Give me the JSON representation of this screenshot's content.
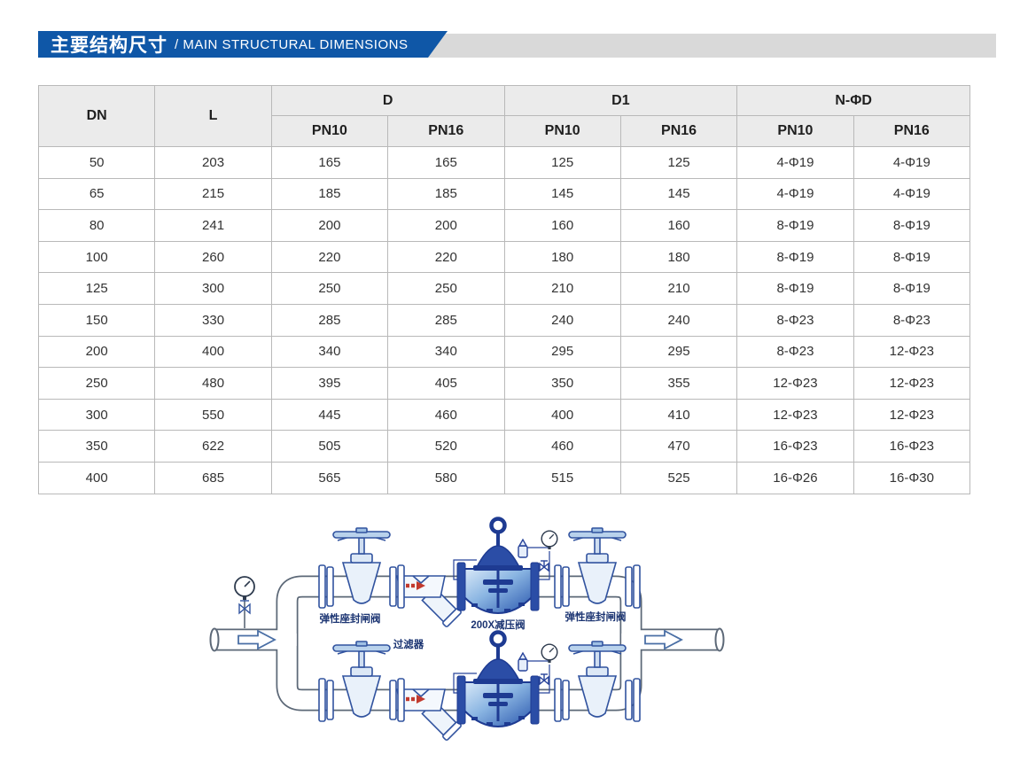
{
  "banner": {
    "title_zh": "主要结构尺寸",
    "title_en": "/ MAIN STRUCTURAL DIMENSIONS",
    "bar_color": "#0f57a7",
    "trail_color": "#d9d9d9"
  },
  "table": {
    "headers": {
      "dn": "DN",
      "l": "L",
      "d": "D",
      "d1": "D1",
      "nphid": "N-ΦD",
      "pn10": "PN10",
      "pn16": "PN16"
    },
    "rows": [
      [
        "50",
        "203",
        "165",
        "165",
        "125",
        "125",
        "4-Φ19",
        "4-Φ19"
      ],
      [
        "65",
        "215",
        "185",
        "185",
        "145",
        "145",
        "4-Φ19",
        "4-Φ19"
      ],
      [
        "80",
        "241",
        "200",
        "200",
        "160",
        "160",
        "8-Φ19",
        "8-Φ19"
      ],
      [
        "100",
        "260",
        "220",
        "220",
        "180",
        "180",
        "8-Φ19",
        "8-Φ19"
      ],
      [
        "125",
        "300",
        "250",
        "250",
        "210",
        "210",
        "8-Φ19",
        "8-Φ19"
      ],
      [
        "150",
        "330",
        "285",
        "285",
        "240",
        "240",
        "8-Φ23",
        "8-Φ23"
      ],
      [
        "200",
        "400",
        "340",
        "340",
        "295",
        "295",
        "8-Φ23",
        "12-Φ23"
      ],
      [
        "250",
        "480",
        "395",
        "405",
        "350",
        "355",
        "12-Φ23",
        "12-Φ23"
      ],
      [
        "300",
        "550",
        "445",
        "460",
        "400",
        "410",
        "12-Φ23",
        "12-Φ23"
      ],
      [
        "350",
        "622",
        "505",
        "520",
        "460",
        "470",
        "16-Φ23",
        "16-Φ23"
      ],
      [
        "400",
        "685",
        "565",
        "580",
        "515",
        "525",
        "16-Φ26",
        "16-Φ30"
      ]
    ]
  },
  "diagram": {
    "labels": {
      "gate_valve_left": "弹性座封闸阀",
      "prv": "200X减压阀",
      "gate_valve_right": "弹性座封闸阀",
      "strainer": "过滤器"
    },
    "colors": {
      "pipe_outline": "#5c6877",
      "valve_blue": "#31539f",
      "prv_dark": "#1e3b92",
      "flow_red": "#c23a2e"
    }
  }
}
